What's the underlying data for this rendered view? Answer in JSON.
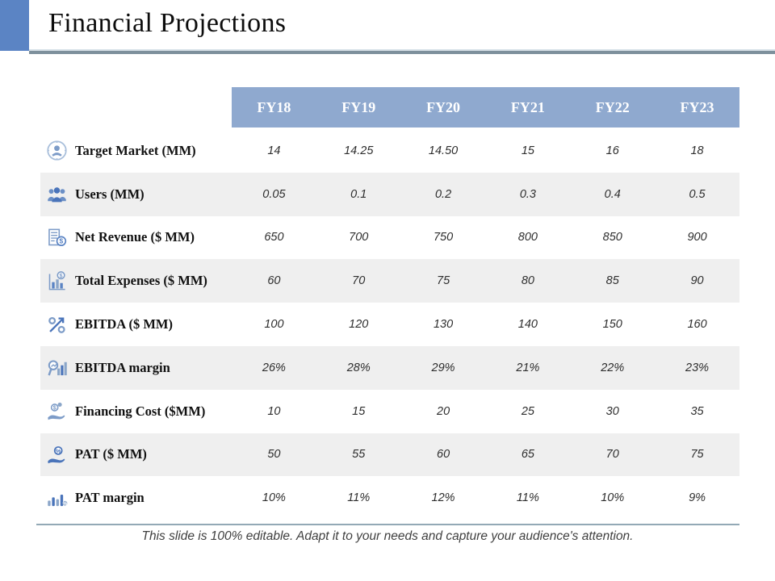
{
  "slide": {
    "title": "Financial Projections",
    "footer": "This slide is 100% editable. Adapt it to your needs and capture your audience's attention."
  },
  "colors": {
    "accent_blue": "#5b84c4",
    "header_blue": "#8fa9cf",
    "alt_row_gray": "#efefef",
    "rule_slate": "#7e909c",
    "icon_blue": "#4a74ba",
    "icon_steel": "#7d9cc8"
  },
  "table": {
    "columns": [
      "FY18",
      "FY19",
      "FY20",
      "FY21",
      "FY22",
      "FY23"
    ],
    "rows": [
      {
        "icon": "target-person-icon",
        "label": "Target Market (MM)",
        "values": [
          "14",
          "14.25",
          "14.50",
          "15",
          "16",
          "18"
        ]
      },
      {
        "icon": "users-group-icon",
        "label": "Users (MM)",
        "values": [
          "0.05",
          "0.1",
          "0.2",
          "0.3",
          "0.4",
          "0.5"
        ]
      },
      {
        "icon": "invoice-dollar-icon",
        "label": "Net Revenue ($ MM)",
        "values": [
          "650",
          "700",
          "750",
          "800",
          "850",
          "900"
        ]
      },
      {
        "icon": "chart-dollar-icon",
        "label": "Total Expenses ($ MM)",
        "values": [
          "60",
          "70",
          "75",
          "80",
          "85",
          "90"
        ]
      },
      {
        "icon": "percent-arrow-icon",
        "label": "EBITDA ($ MM)",
        "values": [
          "100",
          "120",
          "130",
          "140",
          "150",
          "160"
        ]
      },
      {
        "icon": "magnifier-chart-icon",
        "label": "EBITDA margin",
        "values": [
          "26%",
          "28%",
          "29%",
          "21%",
          "22%",
          "23%"
        ]
      },
      {
        "icon": "hand-coins-icon",
        "label": "Financing Cost ($MM)",
        "values": [
          "10",
          "15",
          "20",
          "25",
          "30",
          "35"
        ]
      },
      {
        "icon": "hand-percent-coin-icon",
        "label": "PAT ($ MM)",
        "values": [
          "50",
          "55",
          "60",
          "65",
          "70",
          "75"
        ]
      },
      {
        "icon": "bar-chart-percent-icon",
        "label": "PAT margin",
        "values": [
          "10%",
          "11%",
          "12%",
          "11%",
          "10%",
          "9%"
        ]
      }
    ]
  }
}
